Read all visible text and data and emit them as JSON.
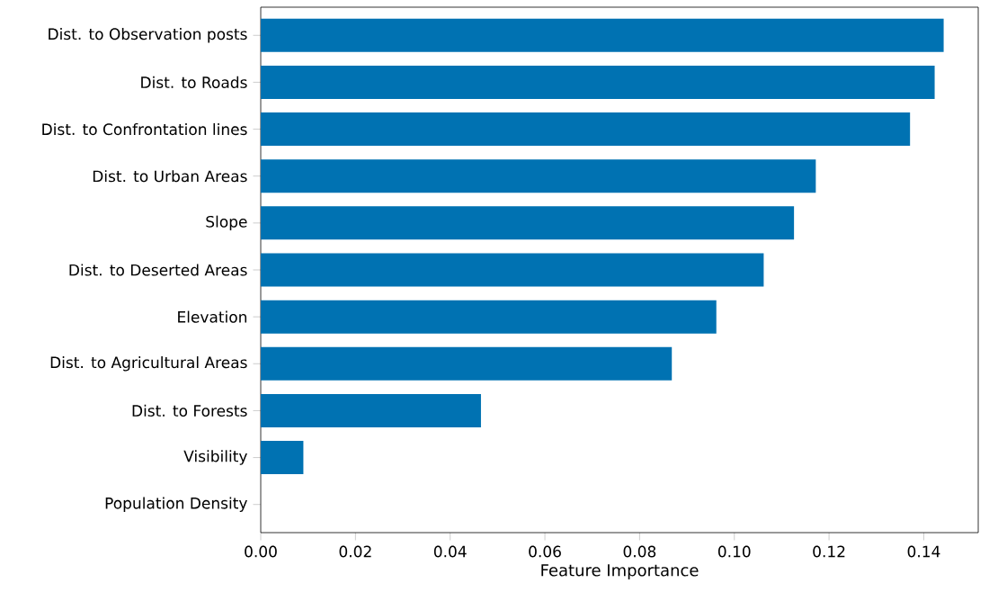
{
  "chart_data": {
    "type": "bar",
    "orientation": "horizontal",
    "xlabel": "Feature Importance",
    "categories": [
      "Dist. to Observation posts",
      "Dist. to Roads",
      "Dist. to Confrontation lines",
      "Dist. to Urban Areas",
      "Slope",
      "Dist. to Deserted Areas",
      "Elevation",
      "Dist. to Agricultural Areas",
      "Dist. to Forests",
      "Visibility",
      "Population Density"
    ],
    "values": [
      0.1442,
      0.1423,
      0.1371,
      0.1172,
      0.1126,
      0.1062,
      0.0962,
      0.0868,
      0.0465,
      0.009,
      0
    ],
    "color": "#0072b2",
    "xlim": [
      0,
      0.1515
    ],
    "xticks": [
      {
        "value": 0,
        "label": "0.00"
      },
      {
        "value": 0.02,
        "label": "0.02"
      },
      {
        "value": 0.04,
        "label": "0.04"
      },
      {
        "value": 0.06,
        "label": "0.06"
      },
      {
        "value": 0.08,
        "label": "0.08"
      },
      {
        "value": 0.1,
        "label": "0.10"
      },
      {
        "value": 0.12,
        "label": "0.12"
      },
      {
        "value": 0.14,
        "label": "0.14"
      }
    ],
    "grid": false
  }
}
